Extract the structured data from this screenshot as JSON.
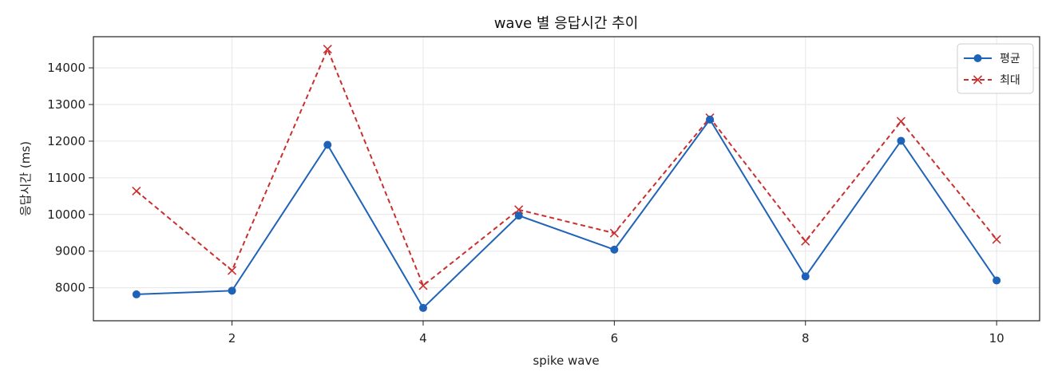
{
  "chart_data": {
    "type": "line",
    "title": "wave 별 응답시간 추이",
    "xlabel": "spike wave",
    "ylabel": "응답시간 (ms)",
    "xlim": [
      0.55,
      10.45
    ],
    "ylim": [
      7100,
      14850
    ],
    "xticks": [
      2,
      4,
      6,
      8,
      10
    ],
    "yticks": [
      8000,
      9000,
      10000,
      11000,
      12000,
      13000,
      14000
    ],
    "grid": true,
    "legend_position": "top-right",
    "x": [
      1,
      2,
      3,
      4,
      5,
      6,
      7,
      8,
      9,
      10
    ],
    "series": [
      {
        "name": "평균",
        "color": "#1f63b8",
        "marker": "circle",
        "line_style": "solid",
        "values": [
          7820,
          7920,
          11900,
          7450,
          9970,
          9040,
          12590,
          8310,
          12010,
          8200
        ]
      },
      {
        "name": "최대",
        "color": "#c8302f",
        "marker": "x",
        "line_style": "dashed",
        "values": [
          10640,
          8470,
          14510,
          8060,
          10130,
          9490,
          12640,
          9270,
          12540,
          9320
        ]
      }
    ]
  }
}
